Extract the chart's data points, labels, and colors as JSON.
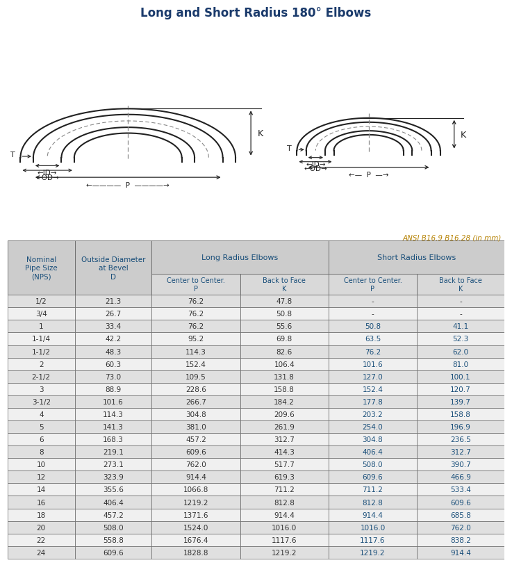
{
  "title": "Long and Short Radius 180° Elbows",
  "ansi_note": "ANSI B16.9 B16.28 (in mm)",
  "rows": [
    [
      "1/2",
      "21.3",
      "76.2",
      "47.8",
      "-",
      "-"
    ],
    [
      "3/4",
      "26.7",
      "76.2",
      "50.8",
      "-",
      "-"
    ],
    [
      "1",
      "33.4",
      "76.2",
      "55.6",
      "50.8",
      "41.1"
    ],
    [
      "1-1/4",
      "42.2",
      "95.2",
      "69.8",
      "63.5",
      "52.3"
    ],
    [
      "1-1/2",
      "48.3",
      "114.3",
      "82.6",
      "76.2",
      "62.0"
    ],
    [
      "2",
      "60.3",
      "152.4",
      "106.4",
      "101.6",
      "81.0"
    ],
    [
      "2-1/2",
      "73.0",
      "109.5",
      "131.8",
      "127.0",
      "100.1"
    ],
    [
      "3",
      "88.9",
      "228.6",
      "158.8",
      "152.4",
      "120.7"
    ],
    [
      "3-1/2",
      "101.6",
      "266.7",
      "184.2",
      "177.8",
      "139.7"
    ],
    [
      "4",
      "114.3",
      "304.8",
      "209.6",
      "203.2",
      "158.8"
    ],
    [
      "5",
      "141.3",
      "381.0",
      "261.9",
      "254.0",
      "196.9"
    ],
    [
      "6",
      "168.3",
      "457.2",
      "312.7",
      "304.8",
      "236.5"
    ],
    [
      "8",
      "219.1",
      "609.6",
      "414.3",
      "406.4",
      "312.7"
    ],
    [
      "10",
      "273.1",
      "762.0",
      "517.7",
      "508.0",
      "390.7"
    ],
    [
      "12",
      "323.9",
      "914.4",
      "619.3",
      "609.6",
      "466.9"
    ],
    [
      "14",
      "355.6",
      "1066.8",
      "711.2",
      "711.2",
      "533.4"
    ],
    [
      "16",
      "406.4",
      "1219.2",
      "812.8",
      "812.8",
      "609.6"
    ],
    [
      "18",
      "457.2",
      "1371.6",
      "914.4",
      "914.4",
      "685.8"
    ],
    [
      "20",
      "508.0",
      "1524.0",
      "1016.0",
      "1016.0",
      "762.0"
    ],
    [
      "22",
      "558.8",
      "1676.4",
      "1117.6",
      "1117.6",
      "838.2"
    ],
    [
      "24",
      "609.6",
      "1828.8",
      "1219.2",
      "1219.2",
      "914.4"
    ]
  ],
  "bg_color_header": "#cccccc",
  "bg_color_subheader": "#d9d9d9",
  "bg_color_row_odd": "#e0e0e0",
  "bg_color_row_even": "#f0f0f0",
  "border_color": "#666666",
  "text_color_normal": "#333333",
  "text_color_blue": "#1a4f7a",
  "title_color": "#1a3a6b",
  "ansi_color": "#b8860b",
  "diagram_line_color": "#222222",
  "diagram_dash_color": "#888888"
}
